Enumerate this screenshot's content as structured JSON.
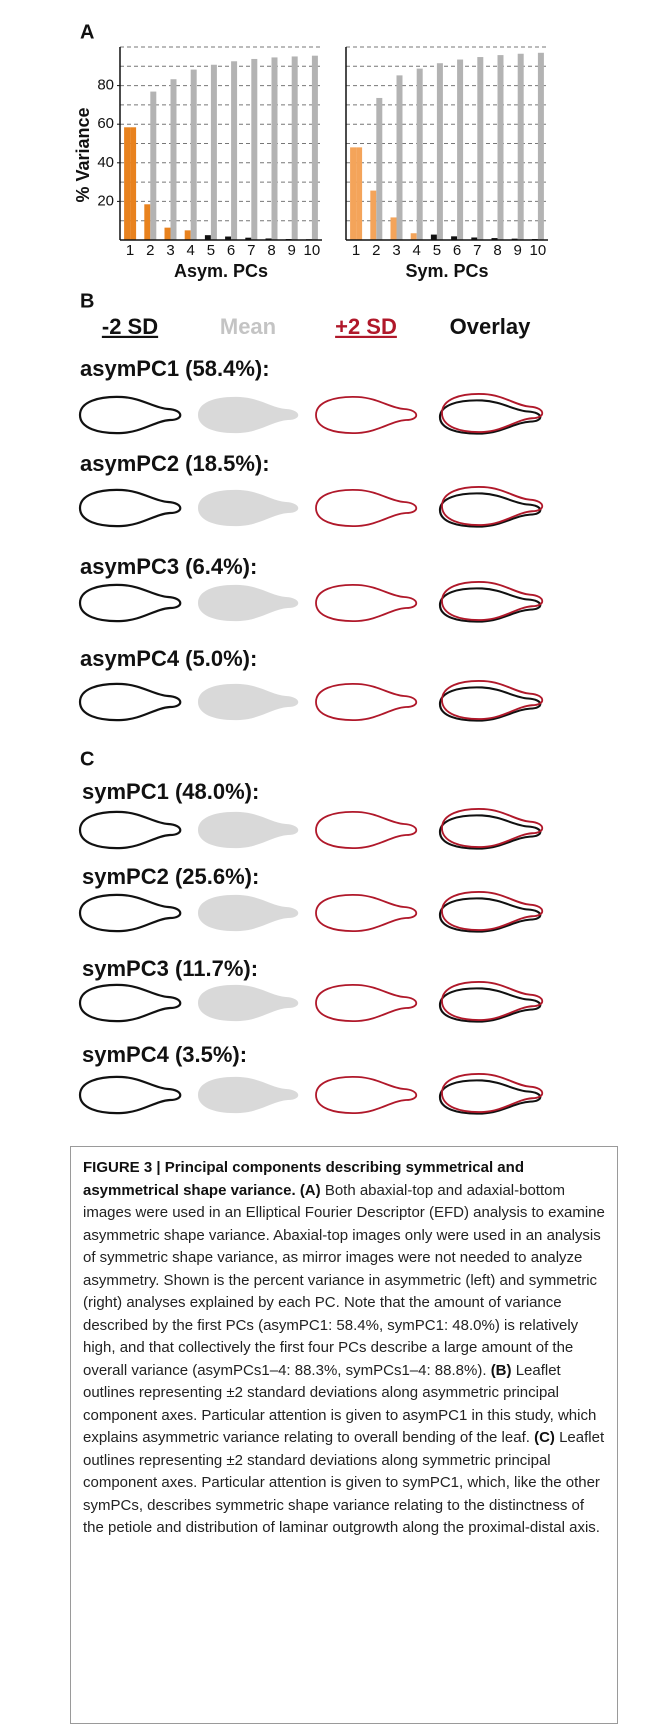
{
  "chart_data": [
    {
      "type": "bar",
      "panel": "A",
      "ylabel": "% Variance",
      "xlabel": "Asym. PCs",
      "categories": [
        "1",
        "2",
        "3",
        "4",
        "5",
        "6",
        "7",
        "8",
        "9",
        "10"
      ],
      "series": [
        {
          "values": [
            58.4,
            18.5,
            6.4,
            5.0,
            2.5,
            1.8,
            1.2,
            0.8,
            0.5,
            0.4
          ],
          "colors": [
            "#e8821e",
            "#e8821e",
            "#e8821e",
            "#e8821e",
            "#111111",
            "#111111",
            "#111111",
            "#111111",
            "#111111",
            "#111111"
          ]
        },
        {
          "values": [
            58.4,
            76.9,
            83.3,
            88.3,
            90.8,
            92.6,
            93.8,
            94.6,
            95.1,
            95.5
          ],
          "colors": [
            "#e8821e",
            "#b3b3b3",
            "#b3b3b3",
            "#b3b3b3",
            "#b3b3b3",
            "#b3b3b3",
            "#b3b3b3",
            "#b3b3b3",
            "#b3b3b3",
            "#b3b3b3"
          ]
        }
      ],
      "ylim": [
        0,
        100
      ],
      "yticks": [
        20,
        40,
        60,
        80
      ],
      "grid_lines": [
        10,
        20,
        30,
        40,
        50,
        60,
        70,
        80,
        90,
        100
      ]
    },
    {
      "type": "bar",
      "xlabel": "Sym. PCs",
      "categories": [
        "1",
        "2",
        "3",
        "4",
        "5",
        "6",
        "7",
        "8",
        "9",
        "10"
      ],
      "series": [
        {
          "values": [
            48.0,
            25.6,
            11.7,
            3.5,
            2.8,
            1.9,
            1.3,
            1.0,
            0.7,
            0.5
          ],
          "colors": [
            "#f4a45a",
            "#f4a45a",
            "#f4a45a",
            "#f4a45a",
            "#111111",
            "#111111",
            "#111111",
            "#111111",
            "#111111",
            "#111111"
          ]
        },
        {
          "values": [
            48.0,
            73.6,
            85.3,
            88.8,
            91.6,
            93.5,
            94.8,
            95.8,
            96.5,
            97.0
          ],
          "colors": [
            "#f4a45a",
            "#b3b3b3",
            "#b3b3b3",
            "#b3b3b3",
            "#b3b3b3",
            "#b3b3b3",
            "#b3b3b3",
            "#b3b3b3",
            "#b3b3b3",
            "#b3b3b3"
          ]
        }
      ],
      "ylim": [
        0,
        100
      ],
      "grid_lines": [
        10,
        20,
        30,
        40,
        50,
        60,
        70,
        80,
        90,
        100
      ]
    }
  ],
  "panel_b": {
    "label": "B",
    "headers": [
      "-2 SD",
      "Mean",
      "+2 SD",
      "Overlay"
    ],
    "rows": [
      "asymPC1 (58.4%):",
      "asymPC2 (18.5%):",
      "asymPC3 (6.4%):",
      "asymPC4 (5.0%):"
    ]
  },
  "panel_c": {
    "label": "C",
    "rows": [
      "symPC1 (48.0%):",
      "symPC2 (25.6%):",
      "symPC3 (11.7%):",
      "symPC4 (3.5%):"
    ]
  },
  "caption": {
    "title": "FIGURE 3 | Principal components describing symmetrical and asymmetrical shape variance.",
    "a_label": "(A)",
    "a_text": "Both abaxial-top and adaxial-bottom images were used in an Elliptical Fourier Descriptor (EFD) analysis to examine asymmetric shape variance. Abaxial-top images only were used in an analysis of symmetric shape variance, as mirror images were not needed to analyze asymmetry. Shown is the percent variance in asymmetric (left) and symmetric (right) analyses explained by each PC. Note that the amount of variance described by the first PCs (asymPC1: 58.4%, symPC1: 48.0%) is relatively high, and that collectively the first four PCs describe a large amount of the overall variance (asymPCs1–4: 88.3%, symPCs1–4: 88.8%).",
    "b_label": "(B)",
    "b_text": "Leaflet outlines representing ±2 standard deviations along asymmetric principal component axes. Particular attention is given to asymPC1 in this study, which explains asymmetric variance relating to overall bending of the leaf.",
    "c_label": "(C)",
    "c_text": "Leaflet outlines representing ±2 standard deviations along symmetric principal component axes. Particular attention is given to symPC1, which, like the other symPCs, describes symmetric shape variance relating to the distinctness of the petiole and distribution of laminar outgrowth along the proximal-distal axis."
  }
}
